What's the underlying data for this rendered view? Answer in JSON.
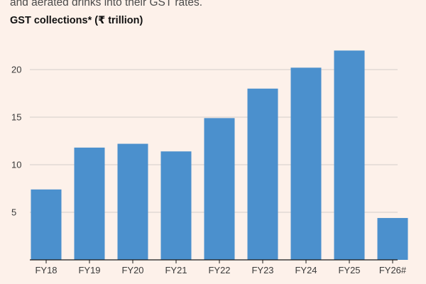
{
  "header": {
    "subtitle": "and aerated drinks into their GST rates."
  },
  "colors": {
    "background": "#fdf1ea",
    "bar": "#4b90cd",
    "gridline": "#d2cdca",
    "baseline": "#1a1a1a",
    "text": "#3a3a3a"
  },
  "chart_data": {
    "type": "bar",
    "title": "GST collections* (₹ trillion)",
    "xlabel": "",
    "ylabel": "",
    "categories": [
      "FY18",
      "FY19",
      "FY20",
      "FY21",
      "FY22",
      "FY23",
      "FY24",
      "FY25",
      "FY26#"
    ],
    "values": [
      7.4,
      11.8,
      12.2,
      11.4,
      14.9,
      18.0,
      20.2,
      22.0,
      4.4
    ],
    "yticks": [
      5,
      10,
      15,
      20
    ],
    "ylim": [
      0,
      24
    ],
    "grid": true,
    "legend": "none"
  }
}
